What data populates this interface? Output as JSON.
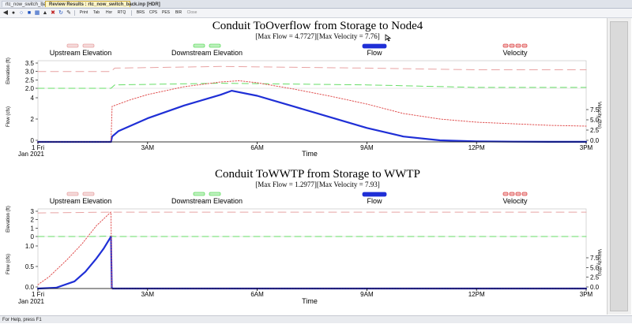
{
  "tabs": [
    {
      "label": "rtc_now_switch_back.inp"
    },
    {
      "label": "Review Results : rtc_now_switch_back.inp [HDR]"
    }
  ],
  "toolbar": {
    "items": [
      {
        "label": "Print",
        "icon": "print-icon"
      },
      {
        "label": "Tab",
        "icon": "table-icon"
      },
      {
        "label": "Hor",
        "icon": "horizontal-icon"
      },
      {
        "label": "RTQ",
        "icon": "rtq-icon"
      },
      {
        "label": "BRS",
        "icon": "brs-icon"
      },
      {
        "label": "CPS",
        "icon": "cps-icon"
      },
      {
        "label": "PES",
        "icon": "pes-icon"
      },
      {
        "label": "BIR",
        "icon": "bir-icon"
      },
      {
        "label": "Close",
        "icon": "close-icon"
      }
    ]
  },
  "status": {
    "text": "For Help, press F1"
  },
  "colors": {
    "upstream": "#e8a3a3",
    "downstream": "#66dd66",
    "flow": "#1f2fd6",
    "velocity": "#e05050"
  },
  "chart_data": [
    {
      "type": "line",
      "title": "Conduit ToOverflow from Storage to Node4",
      "subtitle": "[Max Flow = 4.7727][Max Velocity = 7.76]",
      "legend": [
        "Upstream Elevation",
        "Downstream Elevation",
        "Flow",
        "Velocity"
      ],
      "x_ticks": [
        "1 Fri",
        "3AM",
        "6AM",
        "9AM",
        "12PM",
        "3PM"
      ],
      "x_sub": "Jan 2021",
      "xlabel": "Time",
      "xlim": [
        0,
        15
      ],
      "y_elev_label": "Elevation (ft)",
      "y_elev_ticks": [
        "3.5",
        "3.0",
        "2.5",
        "2.0"
      ],
      "y_flow_label": "Flow (cfs)",
      "y_flow_ticks": [
        "4",
        "2",
        "0"
      ],
      "y_vel_label": "Velocity (ft/s)",
      "y_vel_ticks": [
        "7.5",
        "5.0",
        "2.5",
        "0.0"
      ],
      "elev_ylim": [
        2.0,
        3.5
      ],
      "flow_ylim": [
        0,
        5
      ],
      "vel_ylim": [
        0,
        10
      ],
      "series": [
        {
          "name": "Upstream Elevation",
          "x": [
            0,
            2,
            2.1,
            5,
            9,
            12,
            15
          ],
          "y": [
            3.0,
            3.0,
            3.2,
            3.3,
            3.2,
            3.1,
            3.1
          ]
        },
        {
          "name": "Downstream Elevation",
          "x": [
            0,
            2,
            2.1,
            5,
            9,
            12,
            15
          ],
          "y": [
            2.0,
            2.0,
            2.2,
            2.3,
            2.2,
            2.05,
            2.05
          ]
        },
        {
          "name": "Flow",
          "x": [
            0,
            2,
            2.03,
            2.2,
            3,
            4,
            5,
            5.3,
            6,
            7,
            8,
            9,
            10,
            11,
            12,
            13,
            14,
            15
          ],
          "y": [
            0,
            0,
            0.5,
            1.0,
            2.2,
            3.4,
            4.4,
            4.77,
            4.3,
            3.3,
            2.3,
            1.3,
            0.5,
            0.15,
            0.05,
            0.02,
            0.01,
            0.01
          ]
        },
        {
          "name": "Velocity",
          "x": [
            0,
            2,
            2.03,
            2.5,
            3,
            4,
            5,
            5.5,
            6,
            7,
            8,
            9,
            10,
            11,
            12,
            13,
            14,
            15
          ],
          "y": [
            0,
            0,
            4.5,
            5.3,
            6.0,
            7.0,
            7.6,
            7.76,
            7.5,
            6.7,
            5.8,
            4.8,
            3.6,
            2.9,
            2.5,
            2.3,
            2.1,
            2.0
          ]
        }
      ]
    },
    {
      "type": "line",
      "title": "Conduit ToWWTP from Storage to WWTP",
      "subtitle": "[Max Flow = 1.2977][Max Velocity = 7.93]",
      "legend": [
        "Upstream Elevation",
        "Downstream Elevation",
        "Flow",
        "Velocity"
      ],
      "x_ticks": [
        "1 Fri",
        "3AM",
        "6AM",
        "9AM",
        "12PM",
        "3PM"
      ],
      "x_sub": "Jan 2021",
      "xlabel": "Time",
      "xlim": [
        0,
        15
      ],
      "y_elev_label": "Elevation (ft)",
      "y_elev_ticks": [
        "3",
        "2",
        "1",
        "0"
      ],
      "y_flow_label": "Flow (cfs)",
      "y_flow_ticks": [
        "1.0",
        "0.5",
        "0.0"
      ],
      "y_vel_label": "Velocity (ft/s)",
      "y_vel_ticks": [
        "7.5",
        "5.0",
        "2.5",
        "0.0"
      ],
      "elev_ylim": [
        0,
        3
      ],
      "flow_ylim": [
        0,
        1.3
      ],
      "vel_ylim": [
        0,
        8
      ],
      "series": [
        {
          "name": "Upstream Elevation",
          "x": [
            0,
            2,
            15
          ],
          "y": [
            2.8,
            2.9,
            2.9
          ]
        },
        {
          "name": "Downstream Elevation",
          "x": [
            0,
            1.5,
            2.0,
            2.1,
            15
          ],
          "y": [
            0.0,
            0.0,
            0.05,
            0.0,
            0.0
          ]
        },
        {
          "name": "Flow",
          "x": [
            0,
            0.5,
            1.0,
            1.3,
            1.6,
            1.8,
            2.0,
            2.02,
            2.04,
            15
          ],
          "y": [
            0,
            0.02,
            0.18,
            0.42,
            0.75,
            1.0,
            1.2977,
            0.02,
            0.0,
            0.0
          ]
        },
        {
          "name": "Velocity",
          "x": [
            0,
            0.3,
            0.8,
            1.2,
            1.6,
            2.0,
            2.02,
            15
          ],
          "y": [
            0.4,
            1.2,
            3.0,
            4.6,
            6.5,
            7.93,
            0.0,
            0.0
          ]
        }
      ]
    }
  ]
}
